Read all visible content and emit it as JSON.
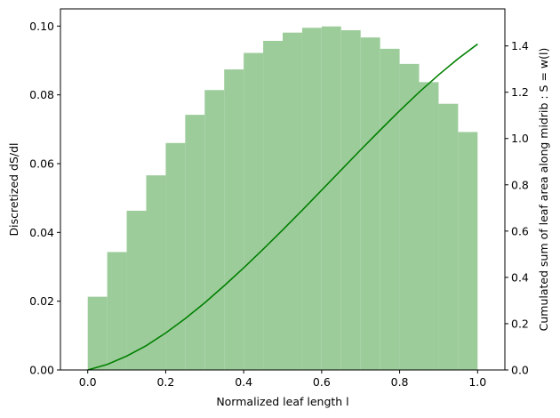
{
  "chart_data": {
    "type": "bar",
    "xlabel": "Normalized leaf length l",
    "ylabel": "Discretized dS/dl",
    "y2label": "Cumulated sum of leaf area along midrib : S = w(l)",
    "xlim": [
      -0.07,
      1.07
    ],
    "ylim": [
      0,
      0.105
    ],
    "y2lim": [
      0,
      1.56
    ],
    "xticks": [
      0.0,
      0.2,
      0.4,
      0.6,
      0.8,
      1.0
    ],
    "xtick_labels": [
      "0.0",
      "0.2",
      "0.4",
      "0.6",
      "0.8",
      "1.0"
    ],
    "yticks": [
      0.0,
      0.02,
      0.04,
      0.06,
      0.08,
      0.1
    ],
    "ytick_labels": [
      "0.00",
      "0.02",
      "0.04",
      "0.06",
      "0.08",
      "0.10"
    ],
    "y2ticks": [
      0.0,
      0.2,
      0.4,
      0.6,
      0.8,
      1.0,
      1.2,
      1.4
    ],
    "y2tick_labels": [
      "0.0",
      "0.2",
      "0.4",
      "0.6",
      "0.8",
      "1.0",
      "1.2",
      "1.4"
    ],
    "bar_color": "#9dcc9b",
    "line_color": "#008000",
    "bars": {
      "bin_width": 0.05,
      "x": [
        0.025,
        0.075,
        0.125,
        0.175,
        0.225,
        0.275,
        0.325,
        0.375,
        0.425,
        0.475,
        0.525,
        0.575,
        0.625,
        0.675,
        0.725,
        0.775,
        0.825,
        0.875,
        0.925,
        0.975
      ],
      "values": [
        0.0213,
        0.0343,
        0.0463,
        0.0566,
        0.066,
        0.0742,
        0.0814,
        0.0874,
        0.0922,
        0.0957,
        0.0981,
        0.0995,
        0.0999,
        0.0988,
        0.0967,
        0.0934,
        0.089,
        0.0837,
        0.0774,
        0.0692
      ]
    },
    "line": {
      "x": [
        0.0,
        0.05,
        0.1,
        0.15,
        0.2,
        0.25,
        0.3,
        0.35,
        0.4,
        0.45,
        0.5,
        0.55,
        0.6,
        0.65,
        0.7,
        0.75,
        0.8,
        0.85,
        0.9,
        0.95,
        1.0
      ],
      "values": [
        0.0,
        0.024,
        0.06,
        0.105,
        0.16,
        0.222,
        0.29,
        0.364,
        0.441,
        0.522,
        0.605,
        0.69,
        0.777,
        0.864,
        0.951,
        1.036,
        1.12,
        1.2,
        1.275,
        1.345,
        1.408
      ]
    }
  }
}
